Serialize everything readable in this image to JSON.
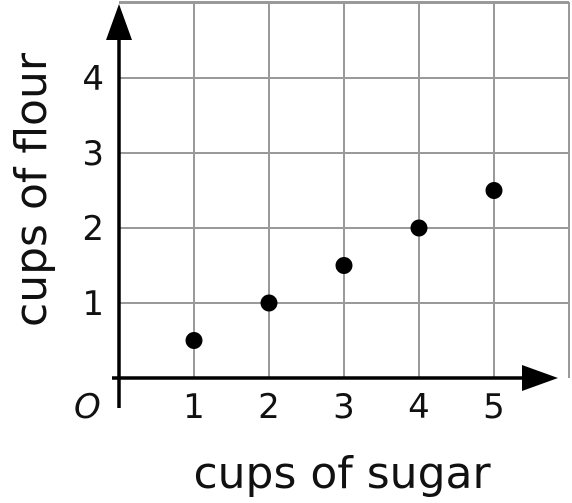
{
  "chart_data": {
    "type": "scatter",
    "title": "",
    "xlabel": "cups of sugar",
    "ylabel": "cups of flour",
    "origin_label": "O",
    "xlim": [
      0,
      6
    ],
    "ylim": [
      0,
      5
    ],
    "x_ticks": [
      1,
      2,
      3,
      4,
      5
    ],
    "y_ticks": [
      1,
      2,
      3,
      4
    ],
    "grid": true,
    "legend": "none",
    "series": [
      {
        "x": [
          1,
          2,
          3,
          4,
          5
        ],
        "y": [
          0.5,
          1,
          1.5,
          2,
          2.5
        ]
      }
    ],
    "colors": {
      "grid": "#9a9a9a",
      "axis": "#000000",
      "point": "#000000"
    }
  }
}
